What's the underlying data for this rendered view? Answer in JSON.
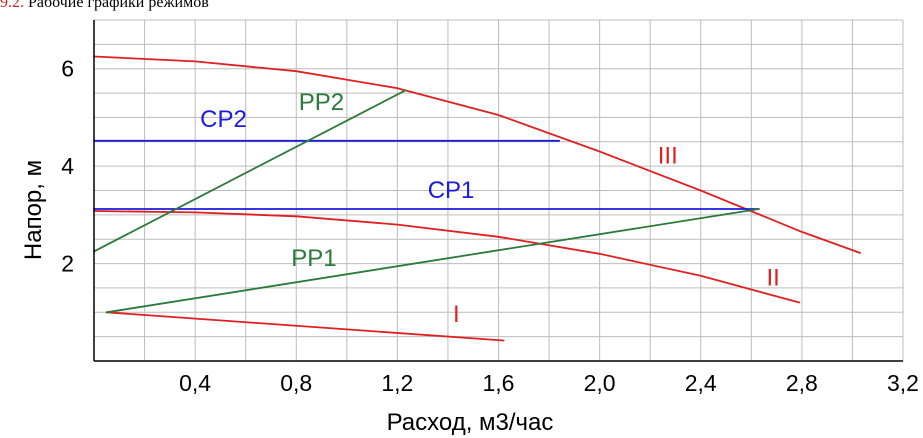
{
  "caption": {
    "number": "9.2.",
    "text": "Рабочие графики режимов"
  },
  "chart_data": {
    "type": "line",
    "title": "",
    "xlabel": "Расход, м3/час",
    "ylabel": "Напор, м",
    "xlim": [
      0,
      3.2
    ],
    "ylim": [
      0,
      7
    ],
    "x_ticks": [
      "0,4",
      "0,8",
      "1,2",
      "1,6",
      "2,0",
      "2,4",
      "2,8",
      "3,2"
    ],
    "x_tick_values": [
      0.4,
      0.8,
      1.2,
      1.6,
      2.0,
      2.4,
      2.8,
      3.2
    ],
    "y_ticks": [
      "2",
      "4",
      "6"
    ],
    "y_tick_values": [
      2,
      4,
      6
    ],
    "grid": true,
    "colors": {
      "red": "#e02020",
      "blue": "#1a1ae0",
      "green": "#2a7a3a"
    },
    "series": [
      {
        "name": "I",
        "color": "red",
        "x": [
          0.05,
          1.62
        ],
        "y": [
          1.0,
          0.42
        ]
      },
      {
        "name": "II",
        "color": "red",
        "x": [
          0.0,
          0.4,
          0.8,
          1.2,
          1.6,
          2.0,
          2.4,
          2.79
        ],
        "y": [
          3.08,
          3.05,
          2.97,
          2.8,
          2.55,
          2.2,
          1.75,
          1.2
        ]
      },
      {
        "name": "III",
        "color": "red",
        "x": [
          0.0,
          0.4,
          0.8,
          1.2,
          1.6,
          2.0,
          2.4,
          2.8,
          3.03
        ],
        "y": [
          6.25,
          6.15,
          5.95,
          5.6,
          5.05,
          4.3,
          3.5,
          2.65,
          2.22
        ]
      },
      {
        "name": "CP1",
        "color": "blue",
        "x": [
          0.0,
          2.63
        ],
        "y": [
          3.12,
          3.12
        ]
      },
      {
        "name": "CP2",
        "color": "blue",
        "x": [
          0.0,
          1.84
        ],
        "y": [
          4.52,
          4.52
        ]
      },
      {
        "name": "PP1",
        "color": "green",
        "x": [
          0.05,
          2.63
        ],
        "y": [
          1.0,
          3.12
        ]
      },
      {
        "name": "PP2",
        "color": "green",
        "x": [
          0.0,
          1.23
        ],
        "y": [
          2.25,
          5.55
        ]
      }
    ],
    "curve_labels": [
      {
        "text": "I",
        "color": "red",
        "x": 1.42,
        "y": 0.8
      },
      {
        "text": "II",
        "color": "red",
        "x": 2.66,
        "y": 1.55
      },
      {
        "text": "III",
        "color": "red",
        "x": 2.23,
        "y": 4.05
      },
      {
        "text": "CP1",
        "color": "blue",
        "x": 1.32,
        "y": 3.35
      },
      {
        "text": "CP2",
        "color": "blue",
        "x": 0.42,
        "y": 4.8
      },
      {
        "text": "PP1",
        "color": "green",
        "x": 0.78,
        "y": 1.95
      },
      {
        "text": "PP2",
        "color": "green",
        "x": 0.81,
        "y": 5.15
      }
    ]
  }
}
